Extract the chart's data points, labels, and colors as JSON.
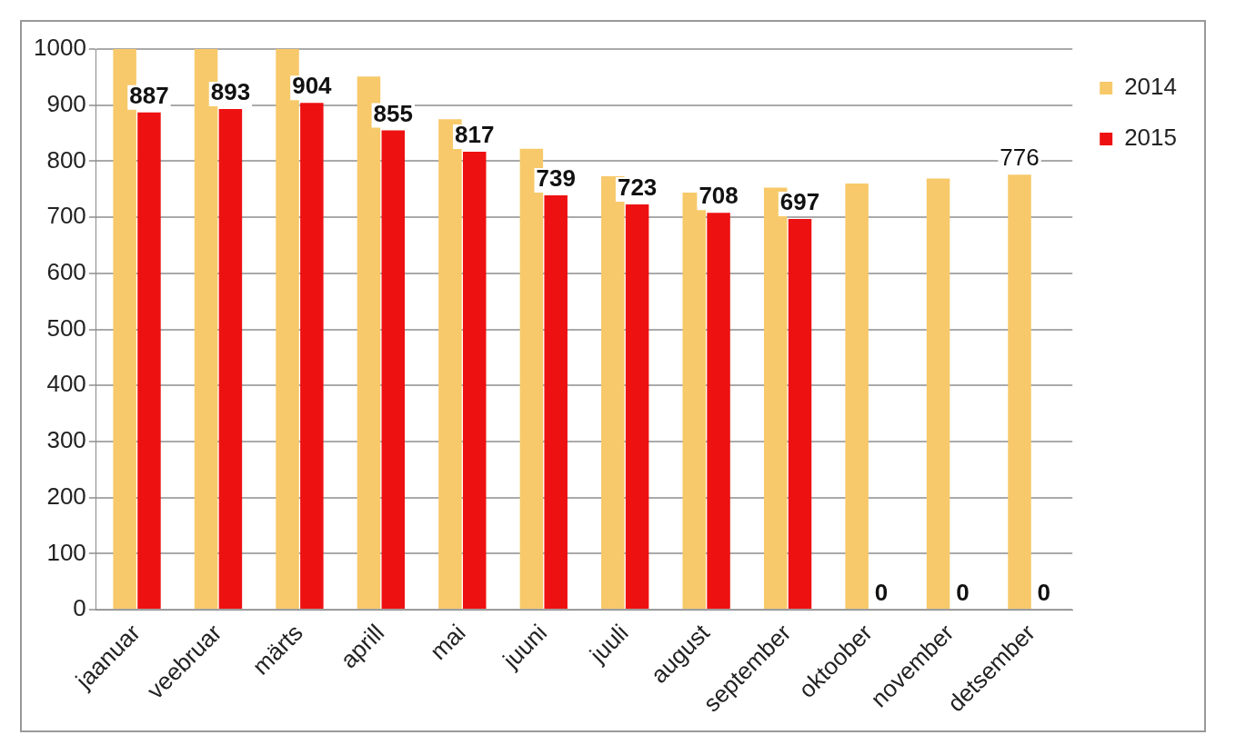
{
  "chart_data": {
    "type": "bar",
    "categories": [
      "jaanuar",
      "veebruar",
      "märts",
      "aprill",
      "mai",
      "juuni",
      "juuli",
      "august",
      "september",
      "oktoober",
      "november",
      "detsember"
    ],
    "series": [
      {
        "name": "2014",
        "color": "#f7c96a",
        "values": [
          1000,
          1000,
          1000,
          951,
          875,
          822,
          773,
          744,
          753,
          760,
          769,
          776
        ],
        "value_labels": [
          null,
          null,
          null,
          null,
          null,
          null,
          null,
          null,
          null,
          null,
          null,
          "776"
        ]
      },
      {
        "name": "2015",
        "color": "#ee1111",
        "values": [
          887,
          893,
          904,
          855,
          817,
          739,
          723,
          708,
          697,
          0,
          0,
          0
        ],
        "value_labels": [
          "887",
          "893",
          "904",
          "855",
          "817",
          "739",
          "723",
          "708",
          "697",
          "0",
          "0",
          "0"
        ]
      }
    ],
    "ylim": [
      0,
      1000
    ],
    "yticks": [
      0,
      100,
      200,
      300,
      400,
      500,
      600,
      700,
      800,
      900,
      1000
    ],
    "grid": "y",
    "legend": "top right"
  }
}
